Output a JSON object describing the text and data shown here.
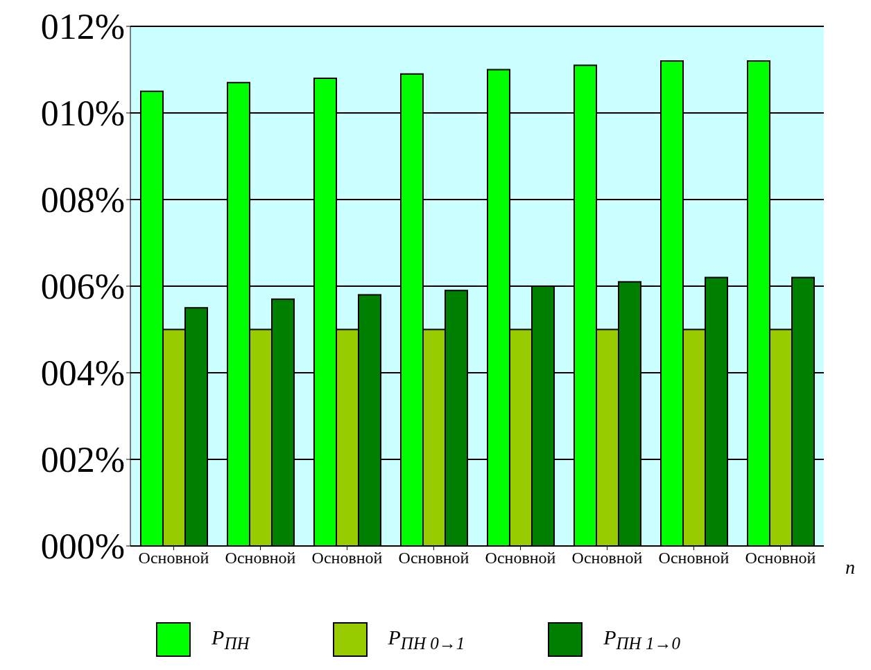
{
  "chart_data": {
    "type": "bar",
    "categories": [
      "Основной",
      "Основной",
      "Основной",
      "Основной",
      "Основной",
      "Основной",
      "Основной",
      "Основной"
    ],
    "xlabel": "n",
    "series": [
      {
        "name": "P$_{ПН}$",
        "color": "#00ff00",
        "values": [
          10.5,
          10.7,
          10.8,
          10.9,
          11.0,
          11.1,
          11.2,
          11.2
        ]
      },
      {
        "name": "P$_{ПН 0→1}$",
        "color": "#99cc00",
        "values": [
          5.0,
          5.0,
          5.0,
          5.0,
          5.0,
          5.0,
          5.0,
          5.0
        ]
      },
      {
        "name": "P$_{ПН 1→0}$",
        "color": "#008000",
        "values": [
          5.5,
          5.7,
          5.8,
          5.9,
          6.0,
          6.1,
          6.2,
          6.2
        ]
      }
    ],
    "ylim": [
      0,
      12
    ],
    "yticks": [
      {
        "value": 0,
        "label": "000%"
      },
      {
        "value": 2,
        "label": "002%"
      },
      {
        "value": 4,
        "label": "004%"
      },
      {
        "value": 6,
        "label": "006%"
      },
      {
        "value": 8,
        "label": "008%"
      },
      {
        "value": 10,
        "label": "010%"
      },
      {
        "value": 12,
        "label": "012%"
      }
    ],
    "grid": "y",
    "legend": "bottom"
  }
}
